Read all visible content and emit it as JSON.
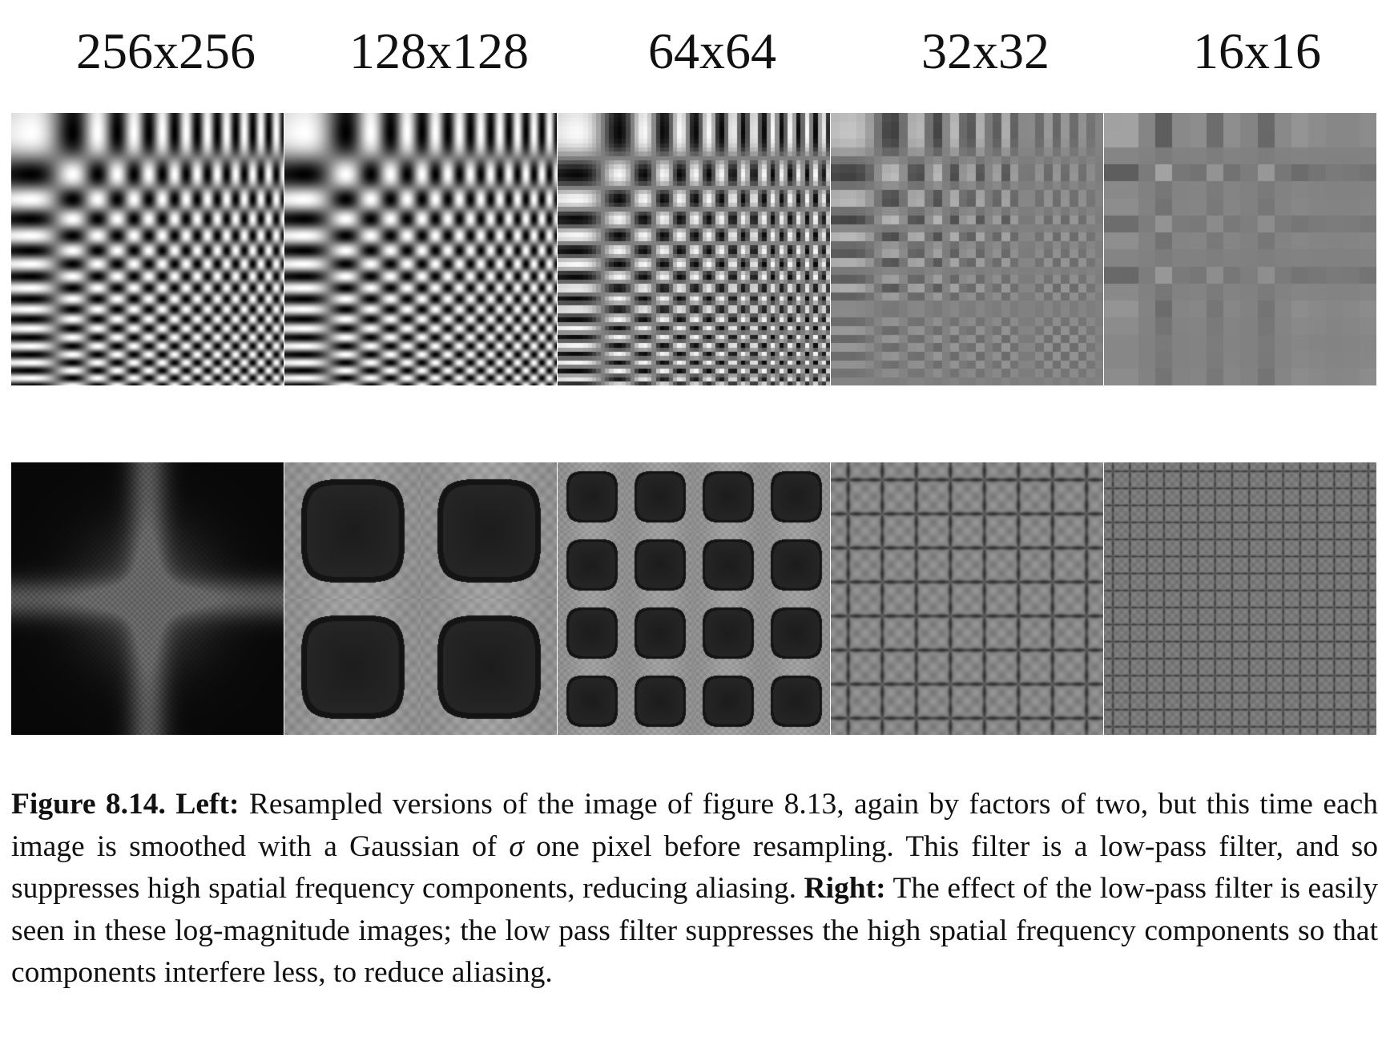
{
  "columns": [
    {
      "label": "256x256",
      "top_grid_n": 0,
      "top_contrast": 1.0,
      "bottom_cross": true,
      "bottom_grid_k": 1,
      "bottom_blob": false
    },
    {
      "label": "128x128",
      "top_grid_n": 0,
      "top_contrast": 1.0,
      "bottom_cross": false,
      "bottom_grid_k": 2,
      "bottom_blob": true
    },
    {
      "label": "64x64",
      "top_grid_n": 64,
      "top_contrast": 0.95,
      "bottom_cross": false,
      "bottom_grid_k": 4,
      "bottom_blob": true
    },
    {
      "label": "32x32",
      "top_grid_n": 32,
      "top_contrast": 0.55,
      "bottom_cross": false,
      "bottom_grid_k": 8,
      "bottom_blob": false
    },
    {
      "label": "16x16",
      "top_grid_n": 16,
      "top_contrast": 0.3,
      "bottom_cross": false,
      "bottom_grid_k": 16,
      "bottom_blob": false
    }
  ],
  "caption": {
    "figure_label": "Figure 8.14.",
    "left_label": "Left:",
    "text_part1": "Resampled versions of the image of figure 8.13, again by factors of two, but this time each image is smoothed with a Gaussian of",
    "sigma_symbol": "σ",
    "text_part2": "one pixel before resampling. This filter is a low-pass filter, and so suppresses high spatial frequency components, reducing aliasing.",
    "right_label": "Right:",
    "text_part3": "The effect of the low-pass filter is easily seen in these log-magnitude images; the low pass filter suppresses the high spatial frequency components so that components interfere less, to reduce aliasing."
  }
}
